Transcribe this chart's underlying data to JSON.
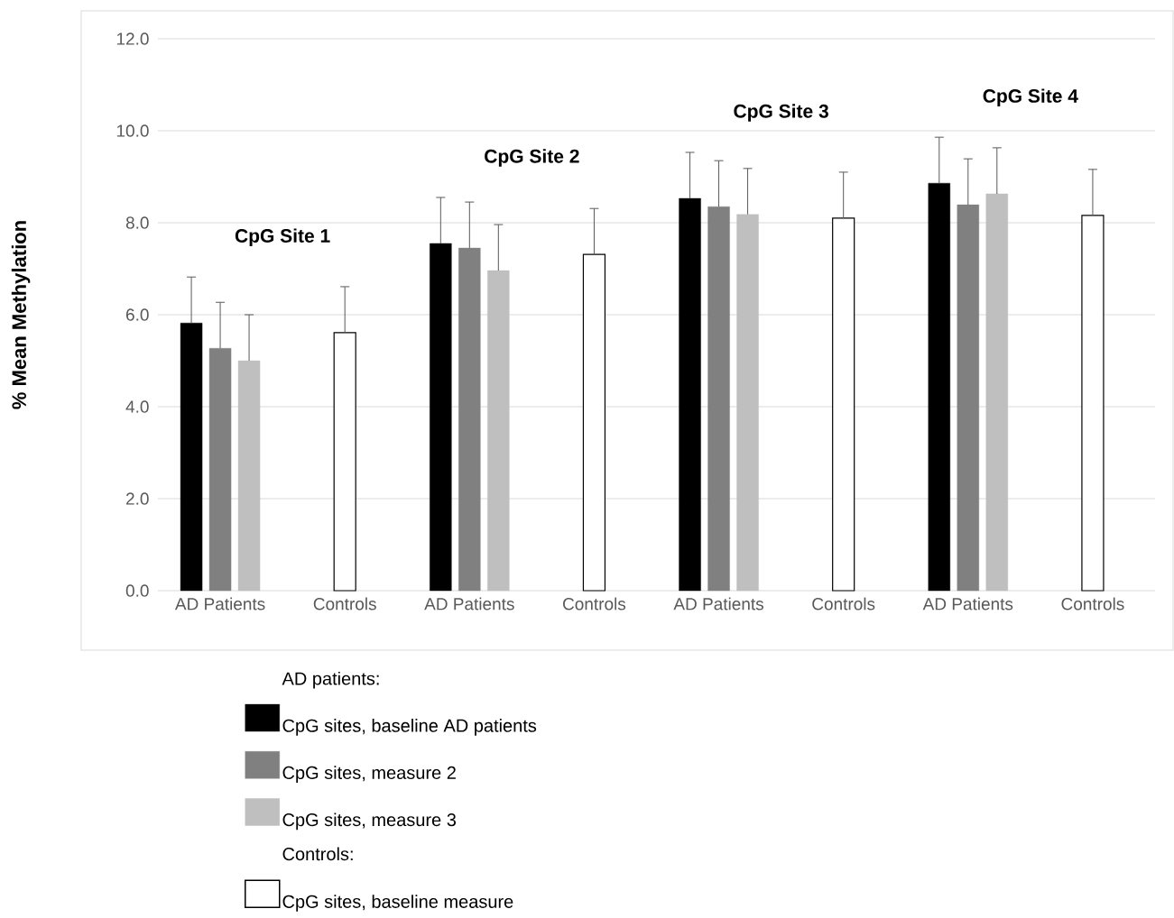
{
  "chart_data": {
    "type": "bar",
    "ylabel": "% Mean Methylation",
    "categories": [
      "AD Patients",
      "Controls",
      "AD Patients",
      "Controls",
      "AD Patients",
      "Controls",
      "AD Patients",
      "Controls"
    ],
    "series": [
      {
        "name": "CpG sites, baseline AD patients",
        "color": "#000000",
        "values": [
          5.82,
          null,
          7.55,
          null,
          8.53,
          null,
          8.86,
          null
        ],
        "errors": [
          1.0,
          null,
          1.0,
          null,
          1.0,
          null,
          1.0,
          null
        ]
      },
      {
        "name": "CpG sites, measure 2",
        "color": "#808080",
        "values": [
          5.27,
          null,
          7.45,
          null,
          8.35,
          null,
          8.39,
          null
        ],
        "errors": [
          1.0,
          null,
          1.0,
          null,
          1.0,
          null,
          1.0,
          null
        ]
      },
      {
        "name": "CpG sites, measure 3",
        "color": "#bfbfbf",
        "values": [
          5.0,
          null,
          6.96,
          null,
          8.18,
          null,
          8.63,
          null
        ],
        "errors": [
          1.0,
          null,
          1.0,
          null,
          1.0,
          null,
          1.0,
          null
        ]
      },
      {
        "name": "CpG sites, baseline measure",
        "color": "#ffffff",
        "values": [
          null,
          5.61,
          null,
          7.31,
          null,
          8.1,
          null,
          8.16
        ],
        "errors": [
          null,
          1.0,
          null,
          1.0,
          null,
          1.0,
          null,
          1.0
        ]
      }
    ],
    "ylim": [
      0,
      12
    ],
    "yticks": [
      {
        "value": 0,
        "label": "0.0"
      },
      {
        "value": 2,
        "label": "2.0"
      },
      {
        "value": 4,
        "label": "4.0"
      },
      {
        "value": 6,
        "label": "6.0"
      },
      {
        "value": 8,
        "label": "8.0"
      },
      {
        "value": 10,
        "label": "10.0"
      },
      {
        "value": 12,
        "label": "12.0"
      }
    ],
    "grid": "y",
    "legend": "bottom",
    "legend_title": "AD patients:",
    "annotations": [
      "CpG Site 1",
      "CpG Site 2",
      "CpG Site 3",
      "CpG Site 4",
      "Controls:"
    ]
  }
}
